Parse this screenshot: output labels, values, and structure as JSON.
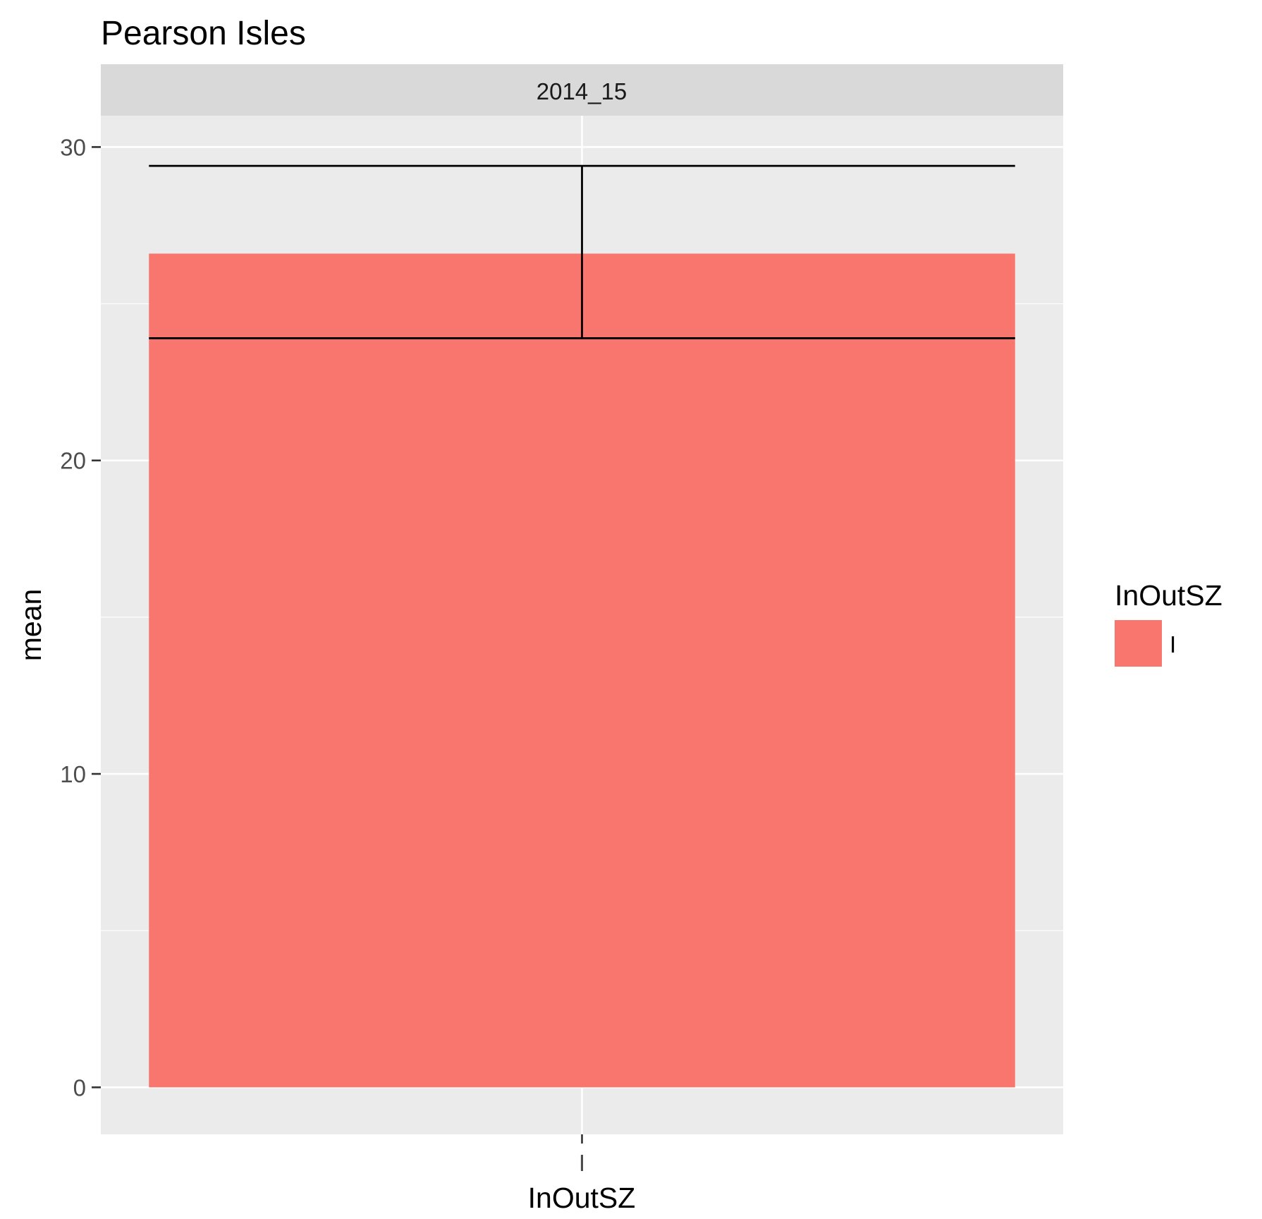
{
  "chart_data": {
    "type": "bar",
    "title": "Pearson Isles",
    "facet": "2014_15",
    "xlabel": "InOutSZ",
    "ylabel": "mean",
    "categories": [
      "I"
    ],
    "series": [
      {
        "values": [
          26.6
        ],
        "error_low": [
          23.9
        ],
        "error_high": [
          29.4
        ]
      }
    ],
    "ylim": [
      -1.5,
      31
    ],
    "yticks": [
      0,
      10,
      20,
      30
    ],
    "grid": true,
    "legend": {
      "title": "InOutSZ",
      "position": "right",
      "items": [
        {
          "label": "I",
          "color": "#F8766D"
        }
      ]
    },
    "colors": {
      "bar": "#F8766D",
      "panel": "#EBEBEB",
      "strip": "#D9D9D9",
      "grid": "#FFFFFF",
      "errorbar": "#000000"
    }
  }
}
